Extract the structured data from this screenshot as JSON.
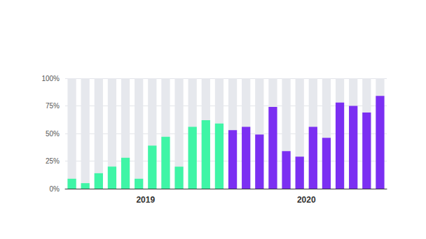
{
  "chart_data": {
    "type": "bar",
    "categories": [
      null,
      null,
      null,
      null,
      null,
      "2019",
      null,
      null,
      null,
      null,
      null,
      null,
      null,
      null,
      null,
      null,
      null,
      "2020",
      null,
      null,
      null,
      null,
      null,
      null
    ],
    "values": [
      9,
      5,
      14,
      20,
      28,
      9,
      39,
      47,
      20,
      56,
      62,
      59,
      53,
      56,
      49,
      74,
      34,
      29,
      56,
      46,
      78,
      75,
      69,
      84
    ],
    "colors": [
      "#3ff5a6",
      "#3ff5a6",
      "#3ff5a6",
      "#3ff5a6",
      "#3ff5a6",
      "#3ff5a6",
      "#3ff5a6",
      "#3ff5a6",
      "#3ff5a6",
      "#3ff5a6",
      "#3ff5a6",
      "#3ff5a6",
      "#7b2ff2",
      "#7b2ff2",
      "#7b2ff2",
      "#7b2ff2",
      "#7b2ff2",
      "#7b2ff2",
      "#7b2ff2",
      "#7b2ff2",
      "#7b2ff2",
      "#7b2ff2",
      "#7b2ff2",
      "#7b2ff2"
    ],
    "ylim": [
      0,
      100
    ],
    "yticks": [
      {
        "value": 0,
        "label": "0%"
      },
      {
        "value": 25,
        "label": "25%"
      },
      {
        "value": 50,
        "label": "50%"
      },
      {
        "value": 75,
        "label": "75%"
      },
      {
        "value": 100,
        "label": "100%"
      }
    ],
    "grid": true
  }
}
